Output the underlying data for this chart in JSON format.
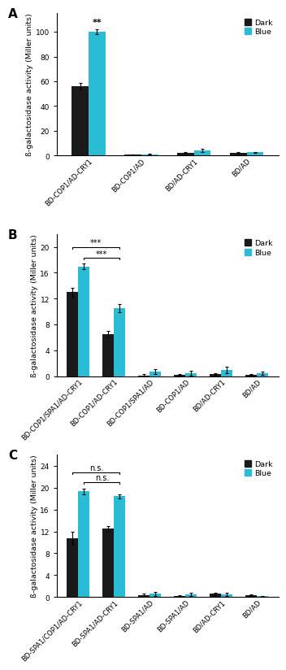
{
  "panel_A": {
    "categories": [
      "BD-COP1/AD-CRY1",
      "BD-COP1/AD",
      "BD/AD-CRY1",
      "BD/AD"
    ],
    "dark_values": [
      56,
      0.8,
      2.3,
      2.3
    ],
    "blue_values": [
      100,
      1.2,
      4.2,
      2.6
    ],
    "dark_errors": [
      2.5,
      0.3,
      0.8,
      0.5
    ],
    "blue_errors": [
      2.0,
      0.3,
      1.4,
      0.5
    ],
    "ylim": [
      0,
      115
    ],
    "yticks": [
      0,
      20,
      40,
      60,
      80,
      100
    ],
    "ylabel": "ß-galactosidase activity (Miller units)"
  },
  "panel_B": {
    "categories": [
      "BD-COP1/SPA1/AD-CRY1",
      "BD-COP1/AD-CRY1",
      "BD-COP1/SPA1/AD",
      "BD-COP1/AD",
      "BD/AD-CRY1",
      "BD/AD"
    ],
    "dark_values": [
      13.0,
      6.5,
      0.15,
      0.2,
      0.3,
      0.2
    ],
    "blue_values": [
      17.0,
      10.5,
      0.7,
      0.5,
      1.0,
      0.5
    ],
    "dark_errors": [
      0.7,
      0.5,
      0.15,
      0.15,
      0.2,
      0.15
    ],
    "blue_errors": [
      0.4,
      0.6,
      0.4,
      0.35,
      0.5,
      0.25
    ],
    "ylim": [
      0,
      22
    ],
    "yticks": [
      0,
      4,
      8,
      12,
      16,
      20
    ],
    "ylabel": "ß-galactosidase activity (Miller units)"
  },
  "panel_C": {
    "categories": [
      "BD-SPA1/COP1/AD-CRY1",
      "BD-SPA1/AD-CRY1",
      "BD-SPA1/AD",
      "BD-SPA1/AD",
      "BD/AD-CRY1",
      "BD/AD"
    ],
    "dark_values": [
      10.8,
      12.5,
      0.3,
      0.2,
      0.6,
      0.35
    ],
    "blue_values": [
      19.3,
      18.4,
      0.6,
      0.5,
      0.5,
      0.15
    ],
    "dark_errors": [
      1.1,
      0.5,
      0.35,
      0.2,
      0.25,
      0.15
    ],
    "blue_errors": [
      0.5,
      0.4,
      0.35,
      0.35,
      0.35,
      0.1
    ],
    "ylim": [
      0,
      26
    ],
    "yticks": [
      0,
      4,
      8,
      12,
      16,
      20,
      24
    ],
    "ylabel": "ß-galactosidase activity (Miller units)"
  },
  "dark_color": "#1a1a1a",
  "blue_color": "#29bcd4",
  "bar_width": 0.32,
  "panel_labels": [
    "A",
    "B",
    "C"
  ],
  "xlabel_fontsize": 6.0,
  "ylabel_fontsize": 6.8,
  "tick_fontsize": 6.5,
  "legend_fontsize": 6.8,
  "panel_label_fontsize": 11
}
